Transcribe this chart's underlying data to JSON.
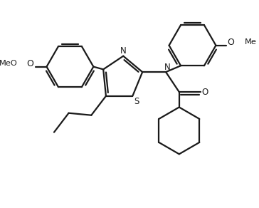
{
  "bg_color": "#ffffff",
  "line_color": "#1a1a1a",
  "lw": 1.6,
  "figsize": [
    3.64,
    2.92
  ],
  "dpi": 100,
  "xlim": [
    0,
    9.1
  ],
  "ylim": [
    0,
    7.3
  ]
}
